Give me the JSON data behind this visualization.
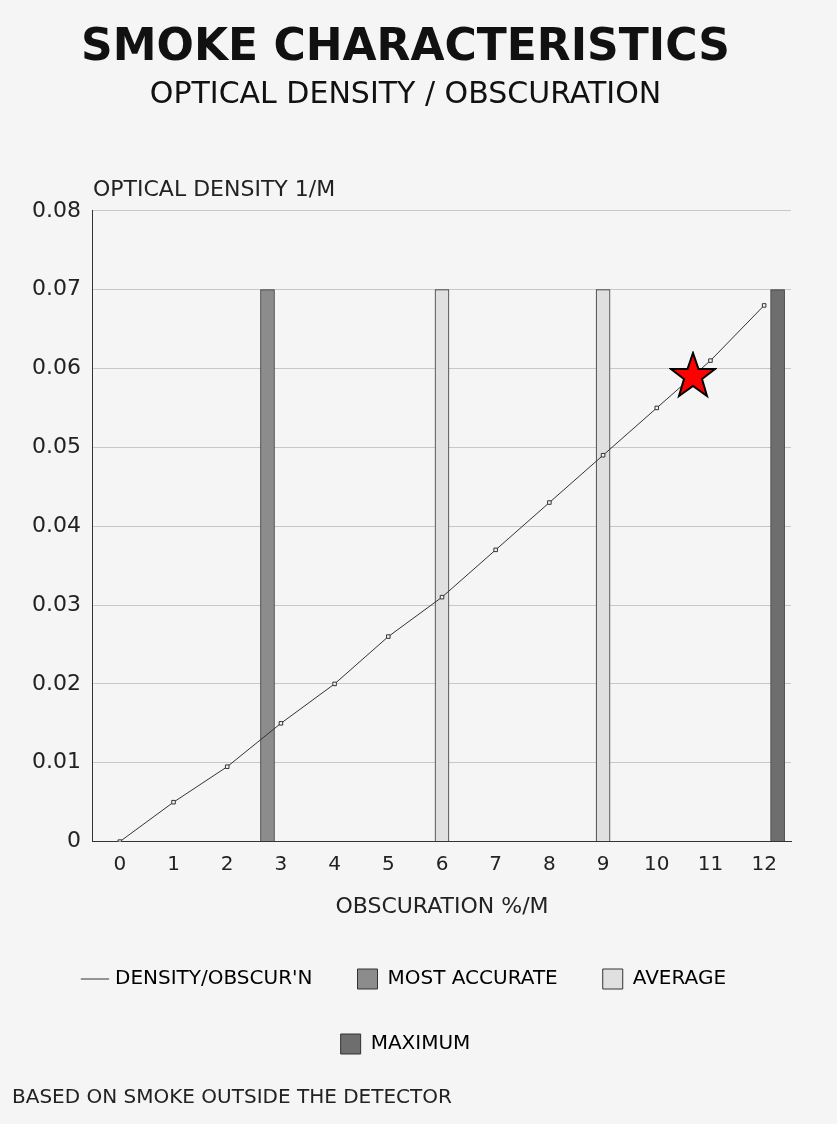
{
  "chart_data": {
    "type": "line",
    "title": "SMOKE CHARACTERISTICS",
    "subtitle": "OPTICAL DENSITY / OBSCURATION",
    "xlabel": "OBSCURATION %/M",
    "ylabel": "OPTICAL DENSITY 1/M",
    "xlim": [
      -0.5,
      12.5
    ],
    "xticks": [
      0,
      1,
      2,
      3,
      4,
      5,
      6,
      7,
      8,
      9,
      10,
      11,
      12
    ],
    "ylim": [
      0,
      0.08
    ],
    "yticks": [
      0,
      0.01,
      0.02,
      0.03,
      0.04,
      0.05,
      0.06,
      0.07,
      0.08
    ],
    "series": [
      {
        "name": "DENSITY/OBSCUR'N",
        "color": "#333333",
        "x": [
          0,
          1,
          2,
          3,
          4,
          5,
          6,
          7,
          8,
          9,
          10,
          11,
          12
        ],
        "values": [
          0,
          0.005,
          0.0095,
          0.015,
          0.02,
          0.026,
          0.031,
          0.037,
          0.043,
          0.049,
          0.055,
          0.061,
          0.068
        ]
      },
      {
        "name": "MOST ACCURATE",
        "type": "bar",
        "color": "#8c8c8c",
        "x": [
          2.75
        ],
        "values": [
          0.07
        ]
      },
      {
        "name": "AVERAGE",
        "type": "bar",
        "color": "#e0e0e0",
        "x": [
          6,
          9
        ],
        "values": [
          0.07,
          0.07
        ]
      },
      {
        "name": "MAXIMUM",
        "type": "bar",
        "color": "#6e6e6e",
        "x": [
          12.25
        ],
        "values": [
          0.07
        ]
      }
    ],
    "grid": "y",
    "legend": "bottom",
    "marker": "square",
    "line_style": "solid",
    "annotations": [
      "BASED ON SMOKE OUTSIDE THE DETECTOR"
    ]
  }
}
